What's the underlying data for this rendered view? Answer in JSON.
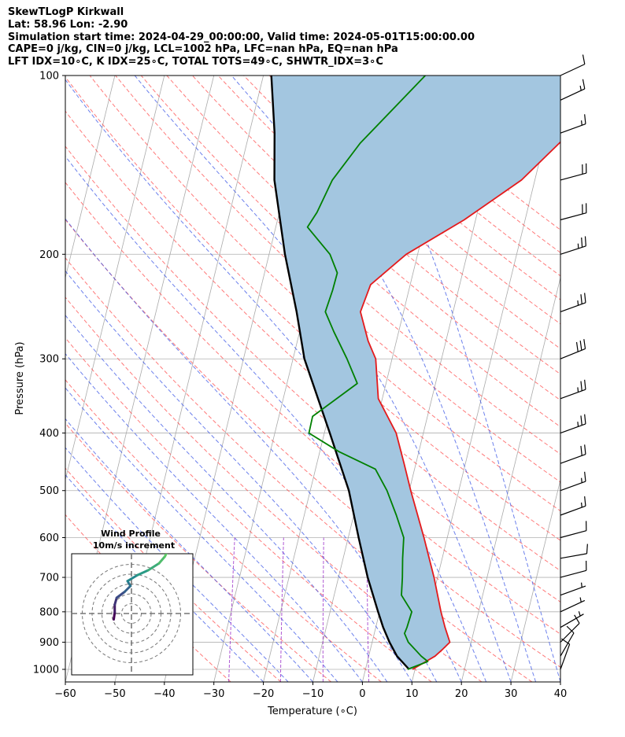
{
  "header": {
    "line1": "SkewTLogP Kirkwall",
    "line2": "Lat: 58.96   Lon: -2.90",
    "line3": "Simulation start time: 2024-04-29_00:00:00, Valid time: 2024-05-01T15:00:00.00",
    "line4": "CAPE=0 j/kg, CIN=0 j/kg, LCL=1002 hPa, LFC=nan hPa, EQ=nan hPa",
    "line5": "LFT IDX=10∘C, K IDX=25∘C, TOTAL TOTS=49∘C, SHWTR_IDX=3∘C"
  },
  "chart_data": {
    "type": "line",
    "xlabel": "Temperature (∘C)",
    "ylabel": "Pressure (hPa)",
    "xlim": [
      -60,
      40
    ],
    "ylim": [
      1050,
      100
    ],
    "yscale": "log",
    "x_ticks": [
      -60,
      -50,
      -40,
      -30,
      -20,
      -10,
      0,
      10,
      20,
      30,
      40
    ],
    "x_tick_labels": [
      "−60",
      "−50",
      "−40",
      "−30",
      "−20",
      "−10",
      "0",
      "10",
      "20",
      "30",
      "40"
    ],
    "y_ticks": [
      1000,
      900,
      800,
      700,
      600,
      500,
      400,
      300,
      200,
      100
    ],
    "y_tick_labels": [
      "1000",
      "900",
      "800",
      "700",
      "600",
      "500",
      "400",
      "300",
      "200",
      "100"
    ],
    "grid": true,
    "colors": {
      "temperature": "#e41a1c",
      "dewpoint": "#008000",
      "parcel": "#000000",
      "fill": "#a3c6e0",
      "dry_adiabat": "#ff4d4d",
      "moist_adiabat": "#3b55e6",
      "mixing_ratio": "#9b2fc9",
      "isotherm": "#aaaaaa"
    },
    "series": [
      {
        "key": "temperature",
        "points": [
          [
            1000,
            9.5
          ],
          [
            950,
            13.4
          ],
          [
            925,
            14.6
          ],
          [
            900,
            15.7
          ],
          [
            850,
            14.0
          ],
          [
            800,
            12.4
          ],
          [
            700,
            9.3
          ],
          [
            600,
            5.3
          ],
          [
            500,
            0.3
          ],
          [
            450,
            -2.4
          ],
          [
            400,
            -5.5
          ],
          [
            350,
            -10.8
          ],
          [
            300,
            -13.3
          ],
          [
            280,
            -15.7
          ],
          [
            250,
            -18.7
          ],
          [
            225,
            -18.0
          ],
          [
            200,
            -12.3
          ],
          [
            175,
            -2.3
          ],
          [
            150,
            7.3
          ],
          [
            125,
            14.7
          ],
          [
            110,
            17.0
          ],
          [
            100,
            18.3
          ]
        ]
      },
      {
        "key": "dewpoint",
        "points": [
          [
            1000,
            8.5
          ],
          [
            970,
            12.2
          ],
          [
            950,
            10.6
          ],
          [
            900,
            7.3
          ],
          [
            870,
            6.1
          ],
          [
            850,
            6.3
          ],
          [
            800,
            6.5
          ],
          [
            750,
            3.6
          ],
          [
            700,
            2.9
          ],
          [
            650,
            2.0
          ],
          [
            600,
            1.2
          ],
          [
            550,
            -1.4
          ],
          [
            500,
            -4.5
          ],
          [
            460,
            -7.9
          ],
          [
            430,
            -16.1
          ],
          [
            400,
            -23.1
          ],
          [
            375,
            -23.2
          ],
          [
            330,
            -15.8
          ],
          [
            300,
            -19.1
          ],
          [
            270,
            -23.1
          ],
          [
            250,
            -25.8
          ],
          [
            230,
            -25.4
          ],
          [
            215,
            -25.3
          ],
          [
            200,
            -27.7
          ],
          [
            180,
            -33.6
          ],
          [
            170,
            -32.4
          ],
          [
            150,
            -30.9
          ],
          [
            130,
            -27.1
          ],
          [
            100,
            -17.3
          ]
        ]
      },
      {
        "key": "parcel",
        "points": [
          [
            1000,
            8.8
          ],
          [
            950,
            5.7
          ],
          [
            900,
            3.5
          ],
          [
            850,
            1.5
          ],
          [
            800,
            -0.3
          ],
          [
            700,
            -4.1
          ],
          [
            600,
            -7.9
          ],
          [
            500,
            -12.2
          ],
          [
            400,
            -18.9
          ],
          [
            300,
            -27.7
          ],
          [
            250,
            -31.6
          ],
          [
            200,
            -36.8
          ],
          [
            150,
            -42.6
          ],
          [
            125,
            -44.9
          ],
          [
            100,
            -48.4
          ]
        ]
      }
    ],
    "wind_barbs": [
      {
        "p": 1000,
        "dir": 200,
        "spd": 12
      },
      {
        "p": 950,
        "dir": 210,
        "spd": 10
      },
      {
        "p": 900,
        "dir": 225,
        "spd": 8
      },
      {
        "p": 850,
        "dir": 240,
        "spd": 7
      },
      {
        "p": 800,
        "dir": 245,
        "spd": 6
      },
      {
        "p": 750,
        "dir": 250,
        "spd": 6
      },
      {
        "p": 700,
        "dir": 255,
        "spd": 8
      },
      {
        "p": 650,
        "dir": 260,
        "spd": 11
      },
      {
        "p": 600,
        "dir": 255,
        "spd": 12
      },
      {
        "p": 550,
        "dir": 250,
        "spd": 14
      },
      {
        "p": 500,
        "dir": 250,
        "spd": 16
      },
      {
        "p": 450,
        "dir": 250,
        "spd": 19
      },
      {
        "p": 400,
        "dir": 250,
        "spd": 24
      },
      {
        "p": 350,
        "dir": 250,
        "spd": 26
      },
      {
        "p": 300,
        "dir": 248,
        "spd": 29
      },
      {
        "p": 250,
        "dir": 250,
        "spd": 27
      },
      {
        "p": 200,
        "dir": 252,
        "spd": 24
      },
      {
        "p": 175,
        "dir": 255,
        "spd": 22
      },
      {
        "p": 150,
        "dir": 255,
        "spd": 20
      },
      {
        "p": 125,
        "dir": 250,
        "spd": 16
      },
      {
        "p": 110,
        "dir": 245,
        "spd": 14
      },
      {
        "p": 100,
        "dir": 245,
        "spd": 12
      }
    ],
    "inset": {
      "title_line1": "Wind Profile",
      "title_line2": "10m/s increment",
      "rings": 4,
      "hodograph": [
        [
          -1.8,
          -0.6
        ],
        [
          -1.7,
          0.1
        ],
        [
          -1.7,
          0.9
        ],
        [
          -1.5,
          1.6
        ],
        [
          -0.7,
          2.2
        ],
        [
          -0.1,
          2.8
        ],
        [
          -0.4,
          3.3
        ],
        [
          0.6,
          3.9
        ],
        [
          1.7,
          4.4
        ],
        [
          2.8,
          5.1
        ],
        [
          3.4,
          5.8
        ],
        [
          3.8,
          6.6
        ],
        [
          4.1,
          7.4
        ],
        [
          4.7,
          8.4
        ]
      ]
    }
  }
}
